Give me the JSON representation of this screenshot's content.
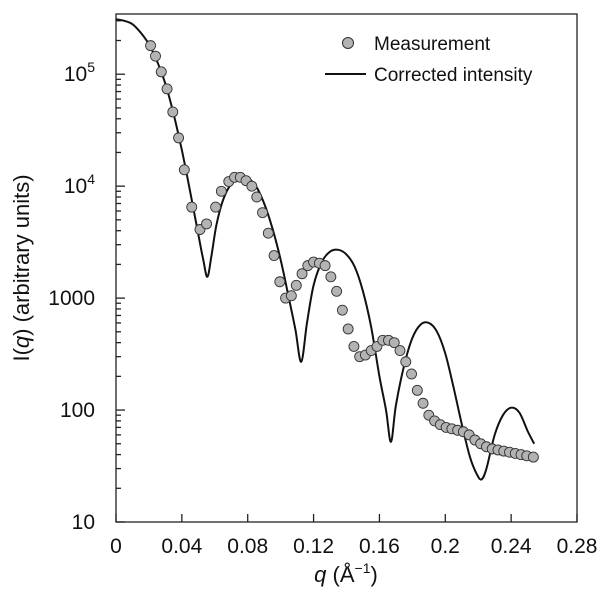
{
  "chart_data": {
    "type": "scatter",
    "title": "",
    "xlabel": "q (Å⁻¹)",
    "xlabel_parts": {
      "var": "q",
      "open": " (Å",
      "exp": "−1",
      "close": ")"
    },
    "ylabel": "I(q) (arbitrary units)",
    "ylabel_parts": {
      "pre": "I(",
      "var": "q",
      "post": ") (arbitrary units)"
    },
    "x_scale": "linear",
    "y_scale": "log",
    "xlim": [
      0,
      0.28
    ],
    "ylim": [
      10,
      400000
    ],
    "x_ticks": [
      0,
      0.04,
      0.08,
      0.12,
      0.16,
      0.2,
      0.24,
      0.28
    ],
    "x_tick_labels": [
      "0",
      "0.04",
      "0.08",
      "0.12",
      "0.16",
      "0.2",
      "0.24",
      "0.28"
    ],
    "y_ticks": [
      {
        "value": 10,
        "label": "10",
        "exp": ""
      },
      {
        "value": 100,
        "label": "100",
        "exp": ""
      },
      {
        "value": 1000,
        "label": "1000",
        "exp": ""
      },
      {
        "value": 10000,
        "label": "10",
        "exp": "4"
      },
      {
        "value": 100000,
        "label": "10",
        "exp": "5"
      }
    ],
    "grid": false,
    "legend_position": "top-right",
    "colors": {
      "marker_fill": "#b3b3b3",
      "marker_edge": "#333333",
      "line": "#111111",
      "axis": "#222222"
    },
    "series": [
      {
        "name": "Measurement",
        "kind": "markers",
        "x": [
          0.021,
          0.024,
          0.0275,
          0.031,
          0.0345,
          0.038,
          0.0415,
          0.046,
          0.051,
          0.055,
          0.0605,
          0.064,
          0.0685,
          0.072,
          0.0755,
          0.079,
          0.0825,
          0.0855,
          0.089,
          0.0925,
          0.096,
          0.0995,
          0.103,
          0.1065,
          0.1095,
          0.113,
          0.1165,
          0.12,
          0.1235,
          0.127,
          0.1305,
          0.134,
          0.1375,
          0.141,
          0.1445,
          0.148,
          0.1515,
          0.155,
          0.1585,
          0.162,
          0.1655,
          0.169,
          0.1725,
          0.176,
          0.1795,
          0.183,
          0.1865,
          0.19,
          0.1935,
          0.197,
          0.2005,
          0.204,
          0.2075,
          0.211,
          0.2145,
          0.218,
          0.2215,
          0.225,
          0.2285,
          0.232,
          0.2355,
          0.239,
          0.2425,
          0.246,
          0.2495,
          0.2535
        ],
        "y": [
          180000,
          145000,
          105000,
          74000,
          46000,
          27000,
          14000,
          6500,
          4100,
          4600,
          6500,
          9000,
          11000,
          12000,
          12000,
          11200,
          10000,
          8000,
          5800,
          3800,
          2400,
          1400,
          1000,
          1050,
          1300,
          1650,
          1950,
          2100,
          2050,
          1950,
          1550,
          1150,
          780,
          530,
          370,
          300,
          310,
          340,
          370,
          420,
          420,
          400,
          340,
          270,
          210,
          150,
          115,
          90,
          80,
          74,
          70,
          68,
          66,
          64,
          60,
          54,
          50,
          47,
          45,
          44,
          43,
          42,
          41,
          40,
          39,
          38
        ]
      },
      {
        "name": "Corrected intensity",
        "kind": "line",
        "x": [
          0,
          0.005,
          0.01,
          0.015,
          0.02,
          0.025,
          0.03,
          0.035,
          0.04,
          0.045,
          0.05,
          0.053,
          0.0555,
          0.058,
          0.061,
          0.065,
          0.07,
          0.075,
          0.08,
          0.085,
          0.09,
          0.095,
          0.1,
          0.105,
          0.109,
          0.1125,
          0.116,
          0.12,
          0.125,
          0.13,
          0.135,
          0.14,
          0.145,
          0.15,
          0.155,
          0.16,
          0.164,
          0.167,
          0.17,
          0.175,
          0.18,
          0.185,
          0.19,
          0.195,
          0.2,
          0.205,
          0.21,
          0.215,
          0.219,
          0.222,
          0.225,
          0.23,
          0.235,
          0.24,
          0.245,
          0.25,
          0.254
        ],
        "y": [
          310000,
          300000,
          280000,
          235000,
          185000,
          130000,
          82000,
          44000,
          21000,
          9000,
          3700,
          2200,
          1550,
          2400,
          4500,
          7500,
          10500,
          11800,
          11800,
          10000,
          7000,
          4200,
          2200,
          1000,
          520,
          270,
          600,
          1300,
          2100,
          2600,
          2700,
          2450,
          1900,
          1150,
          550,
          200,
          100,
          52,
          110,
          250,
          440,
          580,
          600,
          500,
          320,
          160,
          75,
          38,
          27,
          24,
          30,
          60,
          90,
          105,
          95,
          65,
          50
        ]
      }
    ]
  }
}
